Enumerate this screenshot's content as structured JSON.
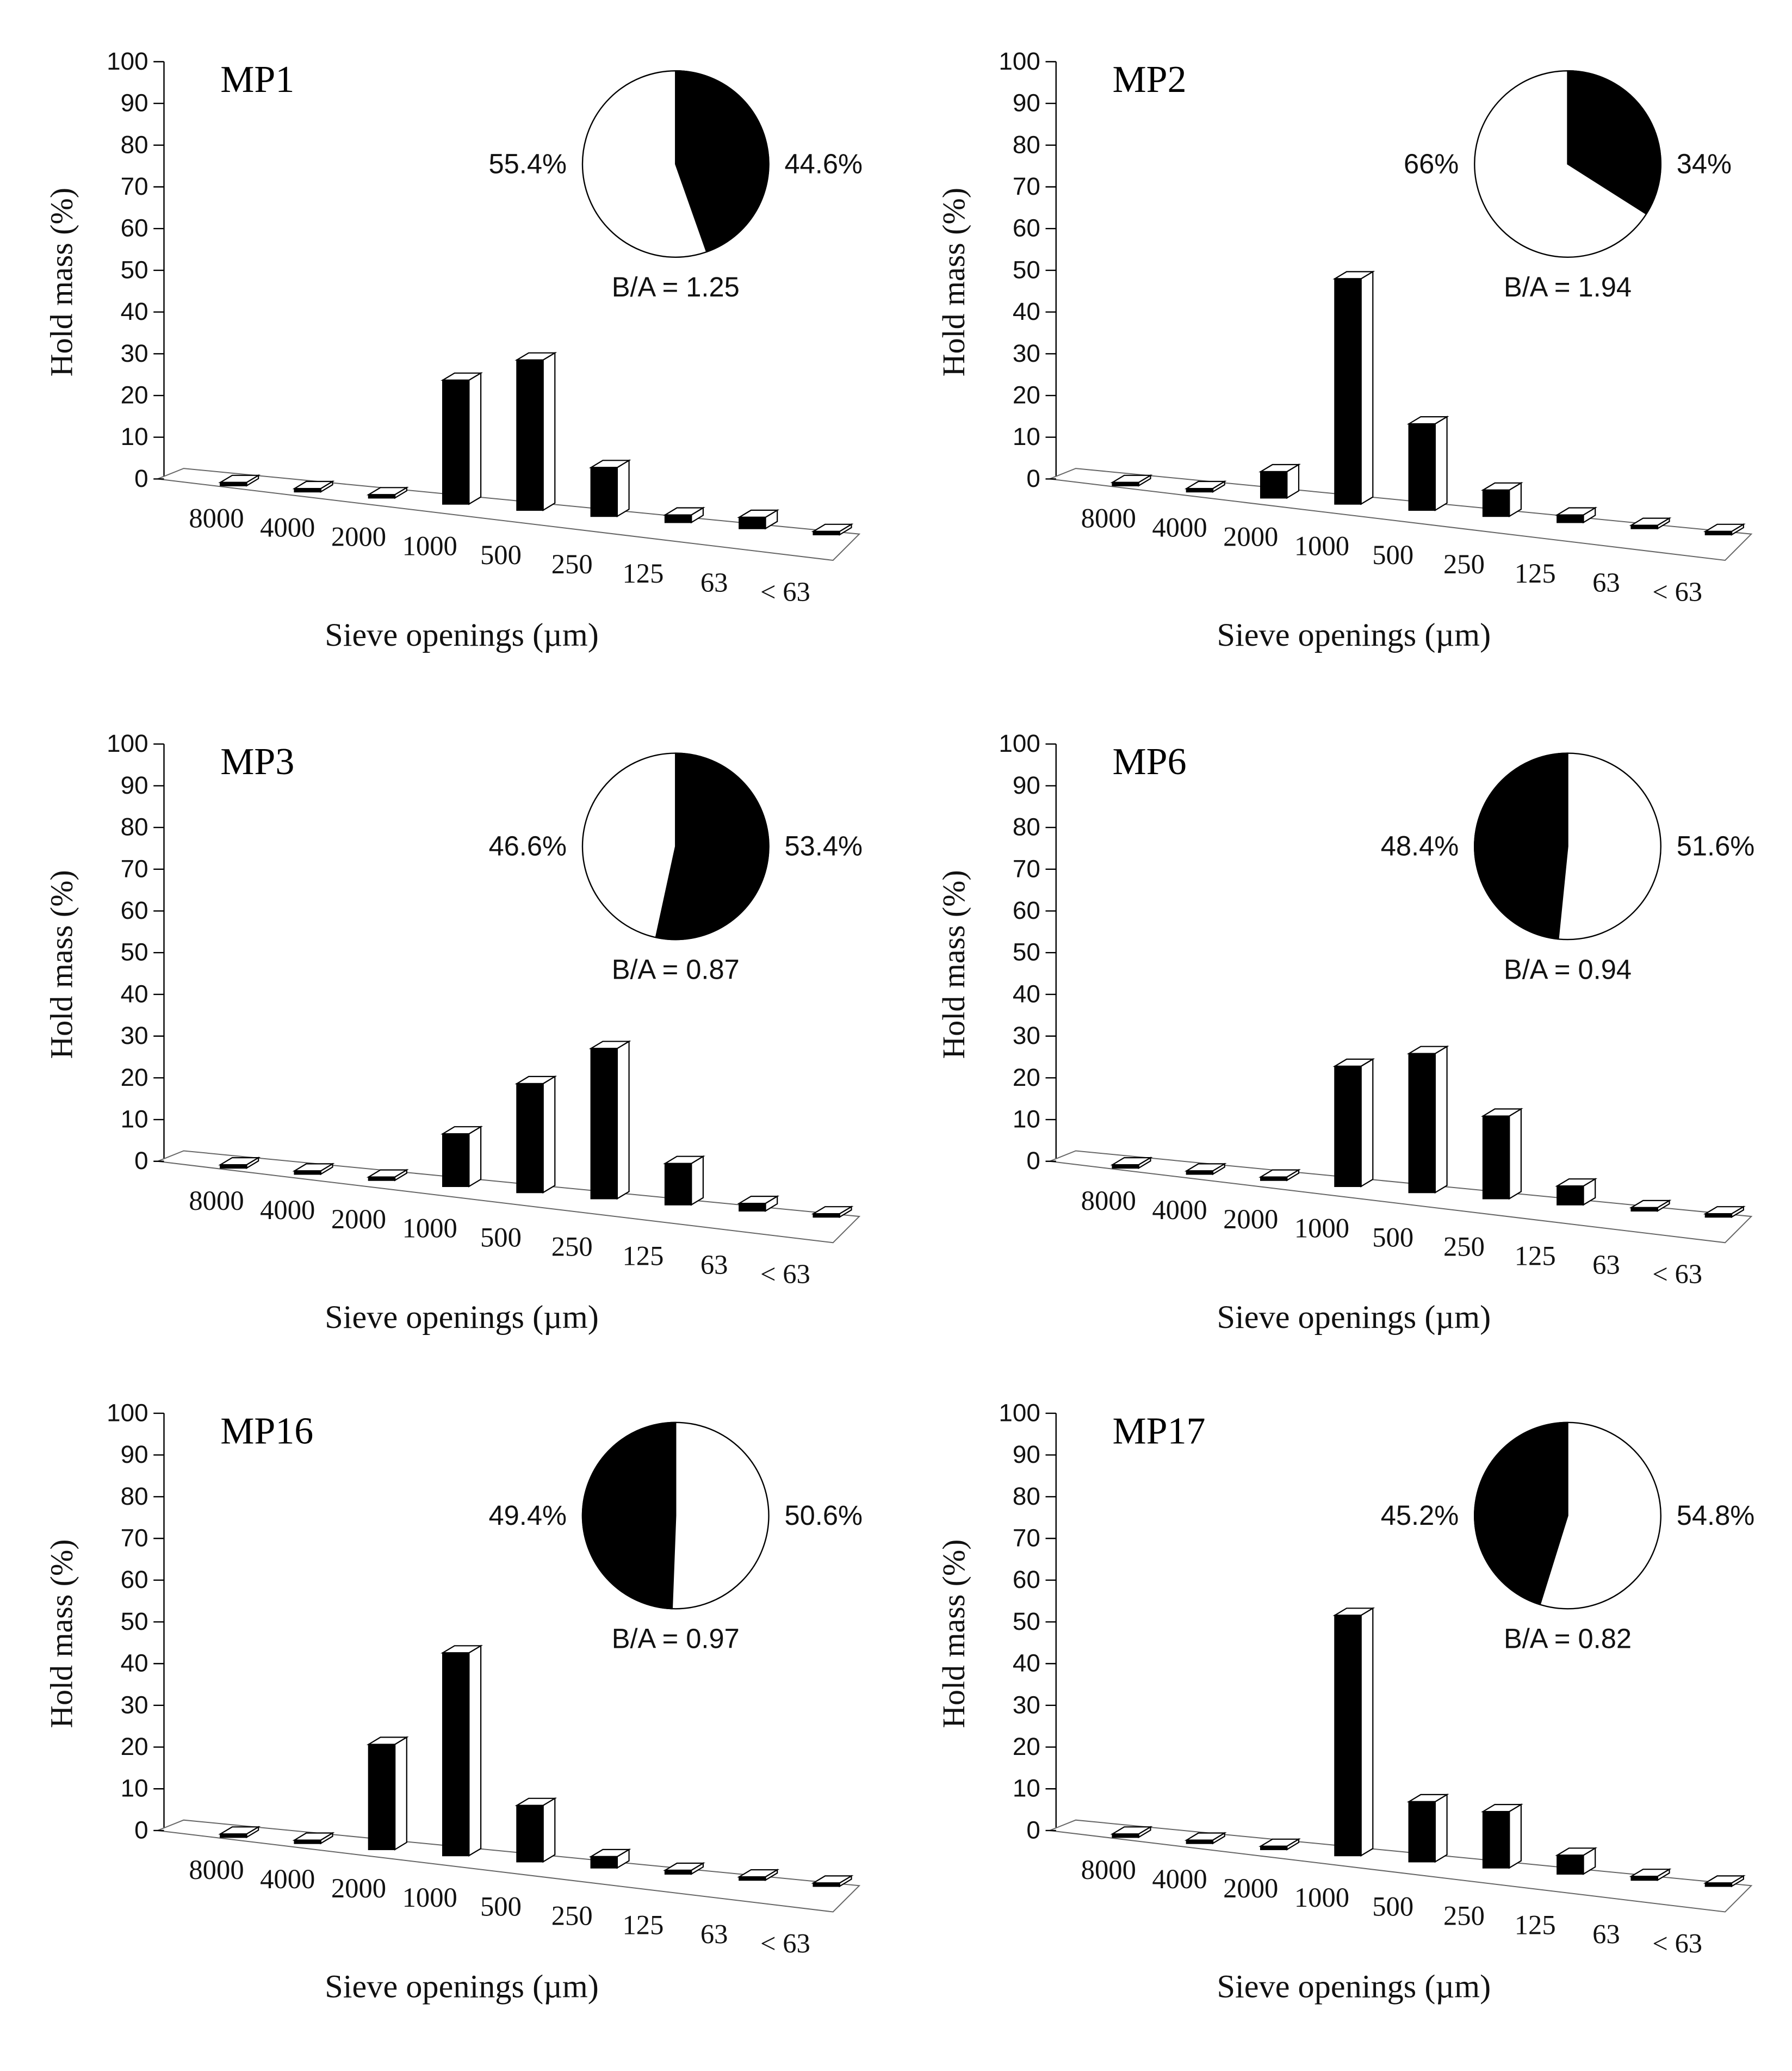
{
  "figure": {
    "y_axis_label": "Hold mass (%)",
    "x_axis_label": "Sieve openings (µm)"
  },
  "chart_data": [
    {
      "type": "bar",
      "title": "MP1",
      "categories": [
        "8000",
        "4000",
        "2000",
        "1000",
        "500",
        "250",
        "125",
        "63",
        "< 63"
      ],
      "values": [
        0.2,
        0.1,
        0.1,
        33,
        40,
        13,
        2,
        3,
        0.3
      ],
      "ylim": [
        0,
        100
      ],
      "yticks": [
        0,
        10,
        20,
        30,
        40,
        50,
        60,
        70,
        80,
        90,
        100
      ],
      "xlabel": "Sieve openings (µm)",
      "ylabel": "Hold mass (%)",
      "pie": {
        "black_percent": 44.6,
        "white_percent": 55.4,
        "black_label": "44.6%",
        "white_label": "55.4%",
        "black_side": "right",
        "ratio_label": "B/A = 1.25"
      }
    },
    {
      "type": "bar",
      "title": "MP2",
      "categories": [
        "8000",
        "4000",
        "2000",
        "1000",
        "500",
        "250",
        "125",
        "63",
        "< 63"
      ],
      "values": [
        0.2,
        0.1,
        7,
        60,
        23,
        7,
        2,
        0.3,
        0.3
      ],
      "ylim": [
        0,
        100
      ],
      "yticks": [
        0,
        10,
        20,
        30,
        40,
        50,
        60,
        70,
        80,
        90,
        100
      ],
      "xlabel": "Sieve openings (µm)",
      "ylabel": "Hold mass (%)",
      "pie": {
        "black_percent": 34,
        "white_percent": 66,
        "black_label": "34%",
        "white_label": "66%",
        "black_side": "right",
        "ratio_label": "B/A = 1.94"
      }
    },
    {
      "type": "bar",
      "title": "MP3",
      "categories": [
        "8000",
        "4000",
        "2000",
        "1000",
        "500",
        "250",
        "125",
        "63",
        "< 63"
      ],
      "values": [
        0.2,
        0.1,
        0.1,
        14,
        29,
        40,
        11,
        2,
        0.3
      ],
      "ylim": [
        0,
        100
      ],
      "yticks": [
        0,
        10,
        20,
        30,
        40,
        50,
        60,
        70,
        80,
        90,
        100
      ],
      "xlabel": "Sieve openings (µm)",
      "ylabel": "Hold mass (%)",
      "pie": {
        "black_percent": 53.4,
        "white_percent": 46.6,
        "black_label": "53.4%",
        "white_label": "46.6%",
        "black_side": "right",
        "ratio_label": "B/A = 0.87"
      }
    },
    {
      "type": "bar",
      "title": "MP6",
      "categories": [
        "8000",
        "4000",
        "2000",
        "1000",
        "500",
        "250",
        "125",
        "63",
        "< 63"
      ],
      "values": [
        0.2,
        0.1,
        0.1,
        32,
        37,
        22,
        5,
        0.3,
        0.3
      ],
      "ylim": [
        0,
        100
      ],
      "yticks": [
        0,
        10,
        20,
        30,
        40,
        50,
        60,
        70,
        80,
        90,
        100
      ],
      "xlabel": "Sieve openings (µm)",
      "ylabel": "Hold mass (%)",
      "pie": {
        "black_percent": 48.4,
        "white_percent": 51.6,
        "black_label": "48.4%",
        "white_label": "51.6%",
        "black_side": "left",
        "ratio_label": "B/A = 0.94"
      }
    },
    {
      "type": "bar",
      "title": "MP16",
      "categories": [
        "8000",
        "4000",
        "2000",
        "1000",
        "500",
        "250",
        "125",
        "63",
        "< 63"
      ],
      "values": [
        0.2,
        0.1,
        28,
        54,
        15,
        3,
        1,
        0.3,
        0.3
      ],
      "ylim": [
        0,
        100
      ],
      "yticks": [
        0,
        10,
        20,
        30,
        40,
        50,
        60,
        70,
        80,
        90,
        100
      ],
      "xlabel": "Sieve openings (µm)",
      "ylabel": "Hold mass (%)",
      "pie": {
        "black_percent": 49.4,
        "white_percent": 50.6,
        "black_label": "49.4%",
        "white_label": "50.6%",
        "black_side": "left",
        "ratio_label": "B/A = 0.97"
      }
    },
    {
      "type": "bar",
      "title": "MP17",
      "categories": [
        "8000",
        "4000",
        "2000",
        "1000",
        "500",
        "250",
        "125",
        "63",
        "< 63"
      ],
      "values": [
        0.2,
        0.1,
        0.1,
        64,
        16,
        15,
        5,
        1,
        0.3
      ],
      "ylim": [
        0,
        100
      ],
      "yticks": [
        0,
        10,
        20,
        30,
        40,
        50,
        60,
        70,
        80,
        90,
        100
      ],
      "xlabel": "Sieve openings (µm)",
      "ylabel": "Hold mass (%)",
      "pie": {
        "black_percent": 45.2,
        "white_percent": 54.8,
        "black_label": "45.2%",
        "white_label": "54.8%",
        "black_side": "left",
        "ratio_label": "B/A = 0.82"
      }
    }
  ]
}
